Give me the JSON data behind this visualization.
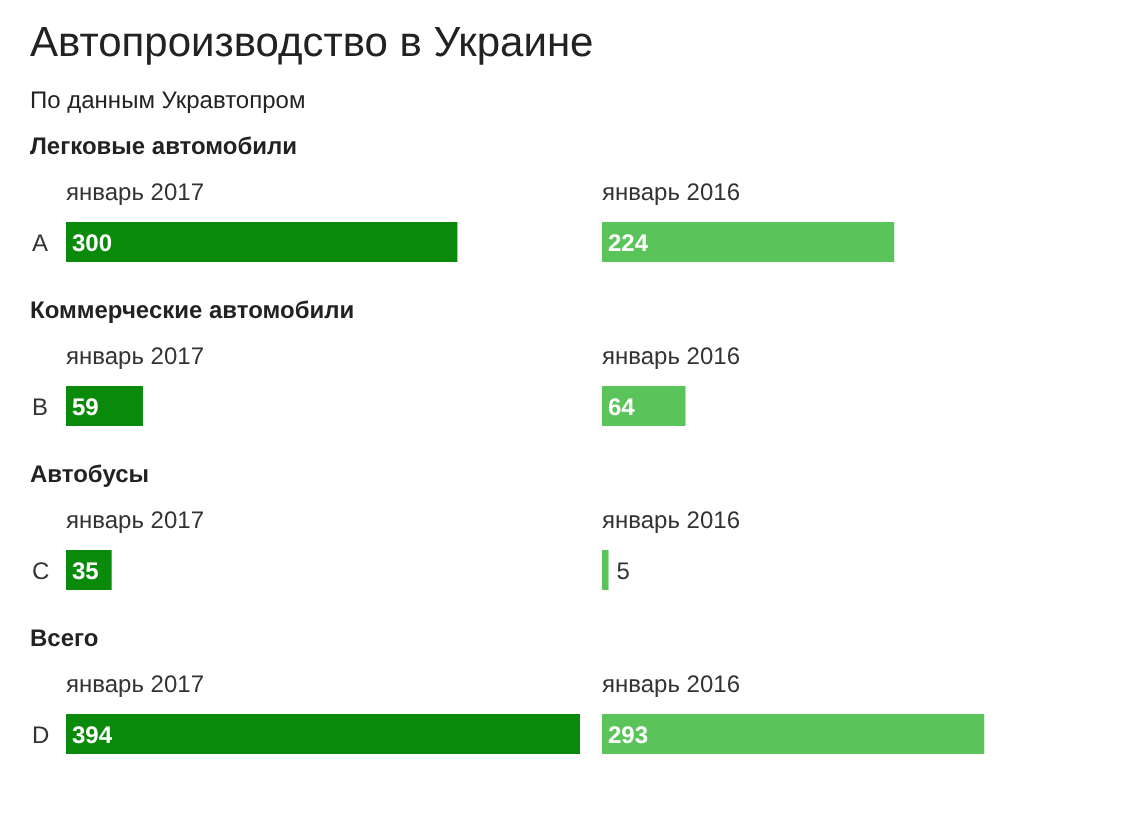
{
  "chart_data": [
    {
      "type": "other",
      "title": "Автопроизводство в Украине",
      "subtitle": "По данным Укравтопром"
    },
    {
      "type": "bar",
      "orientation": "horizontal",
      "title": "Легковые автомобили",
      "categories": [
        "A"
      ],
      "tick_labels": "y",
      "data_labels": true,
      "series": [
        {
          "name": "январь 2017",
          "color": "#0a8a0a",
          "values": [
            300
          ]
        }
      ]
    },
    {
      "type": "bar",
      "orientation": "horizontal",
      "categories": [
        "январь 2016"
      ],
      "tick_labels": "y",
      "data_labels": true,
      "series": [
        {
          "color": "#5ac35a",
          "values": [
            224
          ]
        }
      ]
    },
    {
      "type": "bar",
      "orientation": "horizontal",
      "title": "Коммерческие автомобили",
      "categories": [
        "B"
      ],
      "tick_labels": "y",
      "data_labels": true,
      "series": [
        {
          "name": "январь 2017",
          "color": "#0a8a0a",
          "values": [
            59
          ]
        }
      ]
    },
    {
      "type": "bar",
      "orientation": "horizontal",
      "categories": [
        "январь 2016"
      ],
      "tick_labels": "y",
      "data_labels": true,
      "series": [
        {
          "color": "#5ac35a",
          "values": [
            64
          ]
        }
      ]
    },
    {
      "type": "bar",
      "orientation": "horizontal",
      "title": "Автобусы",
      "categories": [
        "C"
      ],
      "tick_labels": "y",
      "data_labels": true,
      "series": [
        {
          "name": "январь 2017",
          "color": "#0a8a0a",
          "values": [
            35
          ]
        }
      ]
    },
    {
      "type": "bar",
      "orientation": "horizontal",
      "categories": [
        "январь 2016"
      ],
      "tick_labels": "y",
      "data_labels": true,
      "series": [
        {
          "color": "#5ac35a",
          "values": [
            5
          ]
        }
      ]
    },
    {
      "type": "bar",
      "orientation": "horizontal",
      "title": "Всего",
      "categories": [
        "D"
      ],
      "tick_labels": "y",
      "data_labels": true,
      "series": [
        {
          "name": "январь 2017",
          "color": "#0a8a0a",
          "values": [
            394
          ]
        }
      ]
    },
    {
      "type": "bar",
      "orientation": "horizontal",
      "categories": [
        "январь 2016"
      ],
      "tick_labels": "y",
      "data_labels": true,
      "series": [
        {
          "color": "#5ac35a",
          "values": [
            293
          ]
        }
      ]
    }
  ]
}
